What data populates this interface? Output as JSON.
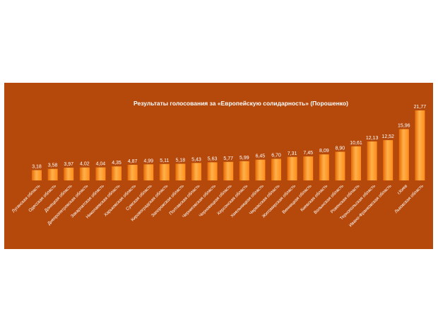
{
  "chart_data": {
    "type": "bar",
    "title": "Результаты голосования за  «Европейскую солидарность» (Порошенко)",
    "xlabel": "",
    "ylabel": "",
    "ylim": [
      0,
      22
    ],
    "grid": false,
    "legend": "none",
    "categories": [
      "Луганская область",
      "Одесская область",
      "Донецкая область",
      "Днепропетровская область",
      "Закарпатская область",
      "Николаевская область",
      "Харьковская область",
      "Сумская область",
      "Кировоградская область",
      "Запорожская область",
      "Полтавская область",
      "Черниговская область",
      "Черновицкая область",
      "Херсонская область",
      "Хмельницкая область",
      "Черкасская область",
      "Житомирская область",
      "Винницкая область",
      "Киевская область",
      "Волынская область",
      "Ровенская область",
      "Тернопольская область",
      "Ивано-Франковская область",
      "г.Киев",
      "Львовская область"
    ],
    "values": [
      3.18,
      3.58,
      3.97,
      4.02,
      4.04,
      4.35,
      4.87,
      4.99,
      5.11,
      5.18,
      5.43,
      5.63,
      5.77,
      5.99,
      6.45,
      6.7,
      7.31,
      7.45,
      8.09,
      8.9,
      10.61,
      12.13,
      12.52,
      15.96,
      21.77
    ],
    "value_labels": [
      "3,18",
      "3,58",
      "3,97",
      "4,02",
      "4,04",
      "4,35",
      "4,87",
      "4,99",
      "5,11",
      "5,18",
      "5,43",
      "5,63",
      "5,77",
      "5,99",
      "6,45",
      "6,70",
      "7,31",
      "7,45",
      "8,09",
      "8,90",
      "10,61",
      "12,13",
      "12,52",
      "15,96",
      "21,77"
    ],
    "colors": {
      "background": "#b5490c",
      "bar_light": "#ffb14a",
      "bar_mid": "#ff8c1a",
      "bar_dark": "#e86a05",
      "text": "#ffffff"
    }
  }
}
